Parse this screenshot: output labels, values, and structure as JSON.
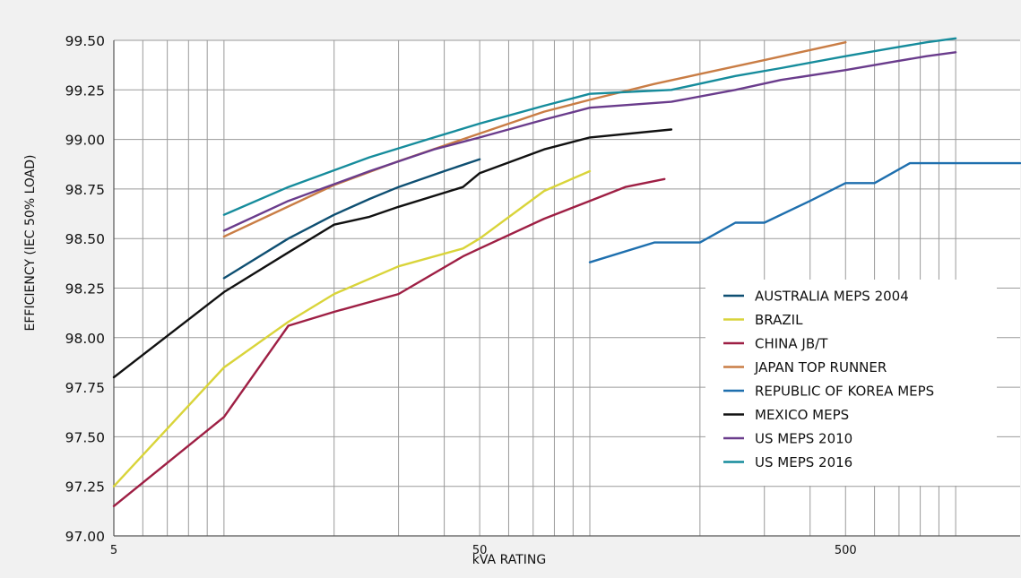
{
  "chart_data": {
    "type": "line",
    "title": "",
    "xlabel": "kVA RATING",
    "ylabel": "EFFICIENCY (IEC 50% LOAD)",
    "x_scale": "log",
    "xlim": [
      5,
      1500
    ],
    "ylim": [
      97.0,
      99.5
    ],
    "grid": true,
    "legend_position": "lower-right",
    "x_tick_values": [
      5,
      50,
      500
    ],
    "x_tick_labels": [
      "5",
      "50",
      "500"
    ],
    "y_tick_values": [
      97.0,
      97.25,
      97.5,
      97.75,
      98.0,
      98.25,
      98.5,
      98.75,
      99.0,
      99.25,
      99.5
    ],
    "y_tick_labels": [
      "97.00",
      "97.25",
      "97.50",
      "97.75",
      "98.00",
      "98.25",
      "98.50",
      "98.75",
      "99.00",
      "99.25",
      "99.50"
    ],
    "series": [
      {
        "name": "AUSTRALIA MEPS 2004",
        "color": "#0e4f72",
        "x": [
          10,
          15,
          20,
          25,
          30,
          40,
          50
        ],
        "y": [
          98.3,
          98.5,
          98.62,
          98.7,
          98.76,
          98.84,
          98.9
        ]
      },
      {
        "name": "BRAZIL",
        "color": "#d9d43a",
        "x": [
          5,
          10,
          15,
          20,
          30,
          45,
          50,
          75,
          100
        ],
        "y": [
          97.25,
          97.85,
          98.08,
          98.22,
          98.36,
          98.45,
          98.5,
          98.74,
          98.84
        ]
      },
      {
        "name": "CHINA JB/T",
        "color": "#9e1f44",
        "x": [
          5,
          10,
          15,
          20,
          30,
          45,
          50,
          75,
          100,
          125,
          160
        ],
        "y": [
          97.15,
          97.6,
          98.06,
          98.13,
          98.22,
          98.41,
          98.45,
          98.6,
          98.69,
          98.76,
          98.8
        ]
      },
      {
        "name": "JAPAN TOP RUNNER",
        "color": "#c97d45",
        "x": [
          10,
          20,
          30,
          50,
          75,
          100,
          150,
          200,
          300,
          500
        ],
        "y": [
          98.51,
          98.77,
          98.89,
          99.03,
          99.14,
          99.2,
          99.28,
          99.33,
          99.4,
          99.49
        ]
      },
      {
        "name": "REPUBLIC OF KOREA MEPS",
        "color": "#1e6fae",
        "x": [
          100,
          150,
          200,
          250,
          300,
          400,
          500,
          600,
          750,
          1000,
          1500
        ],
        "y": [
          98.38,
          98.48,
          98.48,
          98.58,
          98.58,
          98.69,
          98.78,
          98.78,
          98.88,
          98.88,
          98.88
        ]
      },
      {
        "name": "MEXICO MEPS",
        "color": "#111111",
        "x": [
          5,
          10,
          15,
          20,
          25,
          30,
          45,
          50,
          75,
          100,
          167
        ],
        "y": [
          97.8,
          98.23,
          98.43,
          98.57,
          98.61,
          98.66,
          98.76,
          98.83,
          98.95,
          99.01,
          99.05
        ]
      },
      {
        "name": "US MEPS 2010",
        "color": "#6a3c8c",
        "x": [
          10,
          15,
          25,
          37.5,
          50,
          75,
          100,
          167,
          250,
          333,
          500,
          667,
          833,
          1000
        ],
        "y": [
          98.54,
          98.69,
          98.84,
          98.95,
          99.01,
          99.1,
          99.16,
          99.19,
          99.25,
          99.3,
          99.35,
          99.39,
          99.42,
          99.44
        ]
      },
      {
        "name": "US MEPS 2016",
        "color": "#168c9c",
        "x": [
          10,
          15,
          25,
          37.5,
          50,
          75,
          100,
          167,
          250,
          333,
          500,
          667,
          833,
          1000
        ],
        "y": [
          98.62,
          98.76,
          98.91,
          99.01,
          99.08,
          99.17,
          99.23,
          99.25,
          99.32,
          99.36,
          99.42,
          99.46,
          99.49,
          99.51
        ]
      }
    ]
  }
}
